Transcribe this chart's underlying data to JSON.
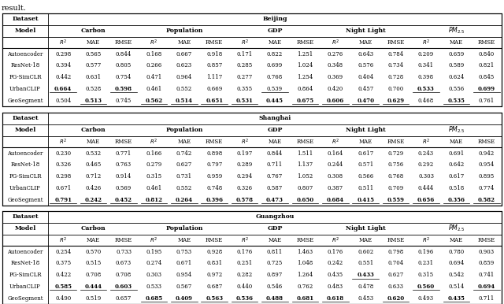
{
  "tables": [
    {
      "city": "Beijing",
      "models": [
        "Autoencoder",
        "ResNet-18",
        "PG-SimCLR",
        "UrbanCLIP",
        "GeoSegment"
      ],
      "data": [
        [
          0.298,
          0.565,
          0.844,
          0.168,
          0.667,
          0.918,
          0.171,
          0.822,
          1.251,
          0.276,
          0.643,
          0.784,
          0.209,
          0.659,
          0.84
        ],
        [
          0.394,
          0.577,
          0.805,
          0.266,
          0.623,
          0.857,
          0.285,
          0.699,
          1.024,
          0.348,
          0.576,
          0.734,
          0.341,
          0.589,
          0.821
        ],
        [
          0.442,
          0.631,
          0.754,
          0.471,
          0.964,
          1.117,
          0.277,
          0.768,
          1.254,
          0.369,
          0.404,
          0.728,
          0.398,
          0.624,
          0.845
        ],
        [
          0.664,
          0.528,
          0.598,
          0.461,
          0.552,
          0.669,
          0.355,
          0.539,
          0.864,
          0.42,
          0.457,
          0.7,
          0.533,
          0.556,
          0.699
        ],
        [
          0.504,
          0.513,
          0.745,
          0.562,
          0.514,
          0.651,
          0.531,
          0.445,
          0.675,
          0.606,
          0.47,
          0.629,
          0.468,
          0.535,
          0.761
        ]
      ],
      "bold": [
        [
          false,
          false,
          false,
          false,
          false,
          false,
          false,
          false,
          false,
          false,
          false,
          false,
          false,
          false,
          false
        ],
        [
          false,
          false,
          false,
          false,
          false,
          false,
          false,
          false,
          false,
          false,
          false,
          false,
          false,
          false,
          false
        ],
        [
          false,
          false,
          false,
          false,
          false,
          false,
          false,
          false,
          false,
          false,
          false,
          false,
          false,
          false,
          false
        ],
        [
          true,
          false,
          true,
          false,
          false,
          false,
          false,
          false,
          false,
          false,
          false,
          false,
          true,
          false,
          true
        ],
        [
          false,
          true,
          false,
          true,
          true,
          true,
          true,
          true,
          true,
          true,
          true,
          true,
          false,
          true,
          false
        ]
      ],
      "underline": [
        [
          false,
          false,
          false,
          false,
          false,
          false,
          false,
          false,
          false,
          false,
          false,
          false,
          false,
          false,
          false
        ],
        [
          false,
          false,
          false,
          false,
          false,
          false,
          false,
          false,
          false,
          false,
          false,
          false,
          false,
          false,
          false
        ],
        [
          false,
          false,
          false,
          false,
          false,
          false,
          false,
          false,
          false,
          false,
          false,
          false,
          false,
          false,
          false
        ],
        [
          true,
          false,
          true,
          false,
          false,
          false,
          false,
          true,
          false,
          false,
          false,
          false,
          true,
          false,
          true
        ],
        [
          false,
          true,
          false,
          true,
          true,
          true,
          true,
          false,
          true,
          true,
          true,
          true,
          false,
          true,
          false
        ]
      ]
    },
    {
      "city": "Shanghai",
      "models": [
        "Autoencoder",
        "ResNet-18",
        "PG-SimCLR",
        "UrbanCLIP",
        "GeoSegment"
      ],
      "data": [
        [
          0.23,
          0.532,
          0.771,
          0.166,
          0.742,
          0.898,
          0.197,
          0.844,
          1.511,
          0.164,
          0.617,
          0.729,
          0.243,
          0.691,
          0.942
        ],
        [
          0.326,
          0.465,
          0.763,
          0.279,
          0.627,
          0.797,
          0.289,
          0.711,
          1.137,
          0.244,
          0.571,
          0.756,
          0.292,
          0.642,
          0.954
        ],
        [
          0.298,
          0.712,
          0.914,
          0.315,
          0.731,
          0.959,
          0.294,
          0.767,
          1.052,
          0.308,
          0.566,
          0.768,
          0.303,
          0.617,
          0.895
        ],
        [
          0.671,
          0.426,
          0.569,
          0.461,
          0.552,
          0.748,
          0.326,
          0.587,
          0.807,
          0.387,
          0.511,
          0.709,
          0.444,
          0.518,
          0.774
        ],
        [
          0.791,
          0.242,
          0.452,
          0.812,
          0.264,
          0.396,
          0.578,
          0.473,
          0.65,
          0.684,
          0.415,
          0.559,
          0.656,
          0.356,
          0.582
        ]
      ],
      "bold": [
        [
          false,
          false,
          false,
          false,
          false,
          false,
          false,
          false,
          false,
          false,
          false,
          false,
          false,
          false,
          false
        ],
        [
          false,
          false,
          false,
          false,
          false,
          false,
          false,
          false,
          false,
          false,
          false,
          false,
          false,
          false,
          false
        ],
        [
          false,
          false,
          false,
          false,
          false,
          false,
          false,
          false,
          false,
          false,
          false,
          false,
          false,
          false,
          false
        ],
        [
          false,
          false,
          false,
          false,
          false,
          false,
          false,
          false,
          false,
          false,
          false,
          false,
          false,
          false,
          false
        ],
        [
          true,
          true,
          true,
          true,
          true,
          true,
          true,
          true,
          true,
          true,
          true,
          true,
          true,
          true,
          true
        ]
      ],
      "underline": [
        [
          false,
          false,
          false,
          false,
          false,
          false,
          false,
          false,
          false,
          false,
          false,
          false,
          false,
          false,
          false
        ],
        [
          false,
          false,
          false,
          false,
          false,
          false,
          false,
          false,
          false,
          false,
          false,
          false,
          false,
          false,
          false
        ],
        [
          false,
          false,
          false,
          false,
          false,
          false,
          false,
          false,
          false,
          false,
          false,
          false,
          false,
          false,
          false
        ],
        [
          false,
          false,
          false,
          false,
          false,
          false,
          false,
          false,
          false,
          false,
          false,
          false,
          false,
          false,
          false
        ],
        [
          true,
          true,
          true,
          true,
          true,
          true,
          true,
          true,
          true,
          true,
          true,
          true,
          true,
          true,
          true
        ]
      ]
    },
    {
      "city": "Guangzhou",
      "models": [
        "Autoencoder",
        "ResNet-18",
        "PG-SimCLR",
        "UrbanCLIP",
        "GeoSegment"
      ],
      "data": [
        [
          0.254,
          0.57,
          0.733,
          0.195,
          0.753,
          0.928,
          0.176,
          0.811,
          1.463,
          0.176,
          0.602,
          0.798,
          0.196,
          0.78,
          0.903
        ],
        [
          0.375,
          0.515,
          0.673,
          0.274,
          0.671,
          0.831,
          0.251,
          0.725,
          1.048,
          0.242,
          0.551,
          0.704,
          0.231,
          0.694,
          0.859
        ],
        [
          0.422,
          0.708,
          0.708,
          0.303,
          0.954,
          0.972,
          0.282,
          0.897,
          1.264,
          0.435,
          0.433,
          0.627,
          0.315,
          0.542,
          0.741
        ],
        [
          0.585,
          0.444,
          0.603,
          0.533,
          0.567,
          0.687,
          0.44,
          0.546,
          0.762,
          0.483,
          0.478,
          0.633,
          0.56,
          0.514,
          0.694
        ],
        [
          0.49,
          0.519,
          0.657,
          0.685,
          0.409,
          0.563,
          0.536,
          0.488,
          0.681,
          0.618,
          0.453,
          0.62,
          0.493,
          0.435,
          0.711
        ]
      ],
      "bold": [
        [
          false,
          false,
          false,
          false,
          false,
          false,
          false,
          false,
          false,
          false,
          false,
          false,
          false,
          false,
          false
        ],
        [
          false,
          false,
          false,
          false,
          false,
          false,
          false,
          false,
          false,
          false,
          false,
          false,
          false,
          false,
          false
        ],
        [
          false,
          false,
          false,
          false,
          false,
          false,
          false,
          false,
          false,
          false,
          true,
          false,
          false,
          false,
          false
        ],
        [
          true,
          true,
          true,
          false,
          false,
          false,
          false,
          false,
          false,
          false,
          false,
          false,
          true,
          false,
          true
        ],
        [
          false,
          false,
          false,
          true,
          true,
          true,
          true,
          true,
          true,
          true,
          false,
          true,
          false,
          true,
          false
        ]
      ],
      "underline": [
        [
          false,
          false,
          false,
          false,
          false,
          false,
          false,
          false,
          false,
          false,
          false,
          false,
          false,
          false,
          false
        ],
        [
          false,
          false,
          false,
          false,
          false,
          false,
          false,
          false,
          false,
          false,
          false,
          false,
          false,
          false,
          false
        ],
        [
          false,
          false,
          false,
          false,
          false,
          false,
          false,
          false,
          false,
          false,
          true,
          false,
          false,
          false,
          false
        ],
        [
          true,
          true,
          true,
          false,
          false,
          false,
          false,
          false,
          false,
          false,
          false,
          false,
          true,
          false,
          true
        ],
        [
          false,
          false,
          false,
          true,
          true,
          true,
          true,
          true,
          true,
          true,
          false,
          true,
          false,
          true,
          false
        ]
      ]
    }
  ],
  "metric_labels": [
    "Carbon",
    "Population",
    "GDP",
    "Night Light",
    "$PM_{2.5}$"
  ],
  "col_headers": [
    "$R^2$",
    "MAE",
    "RMSE"
  ]
}
